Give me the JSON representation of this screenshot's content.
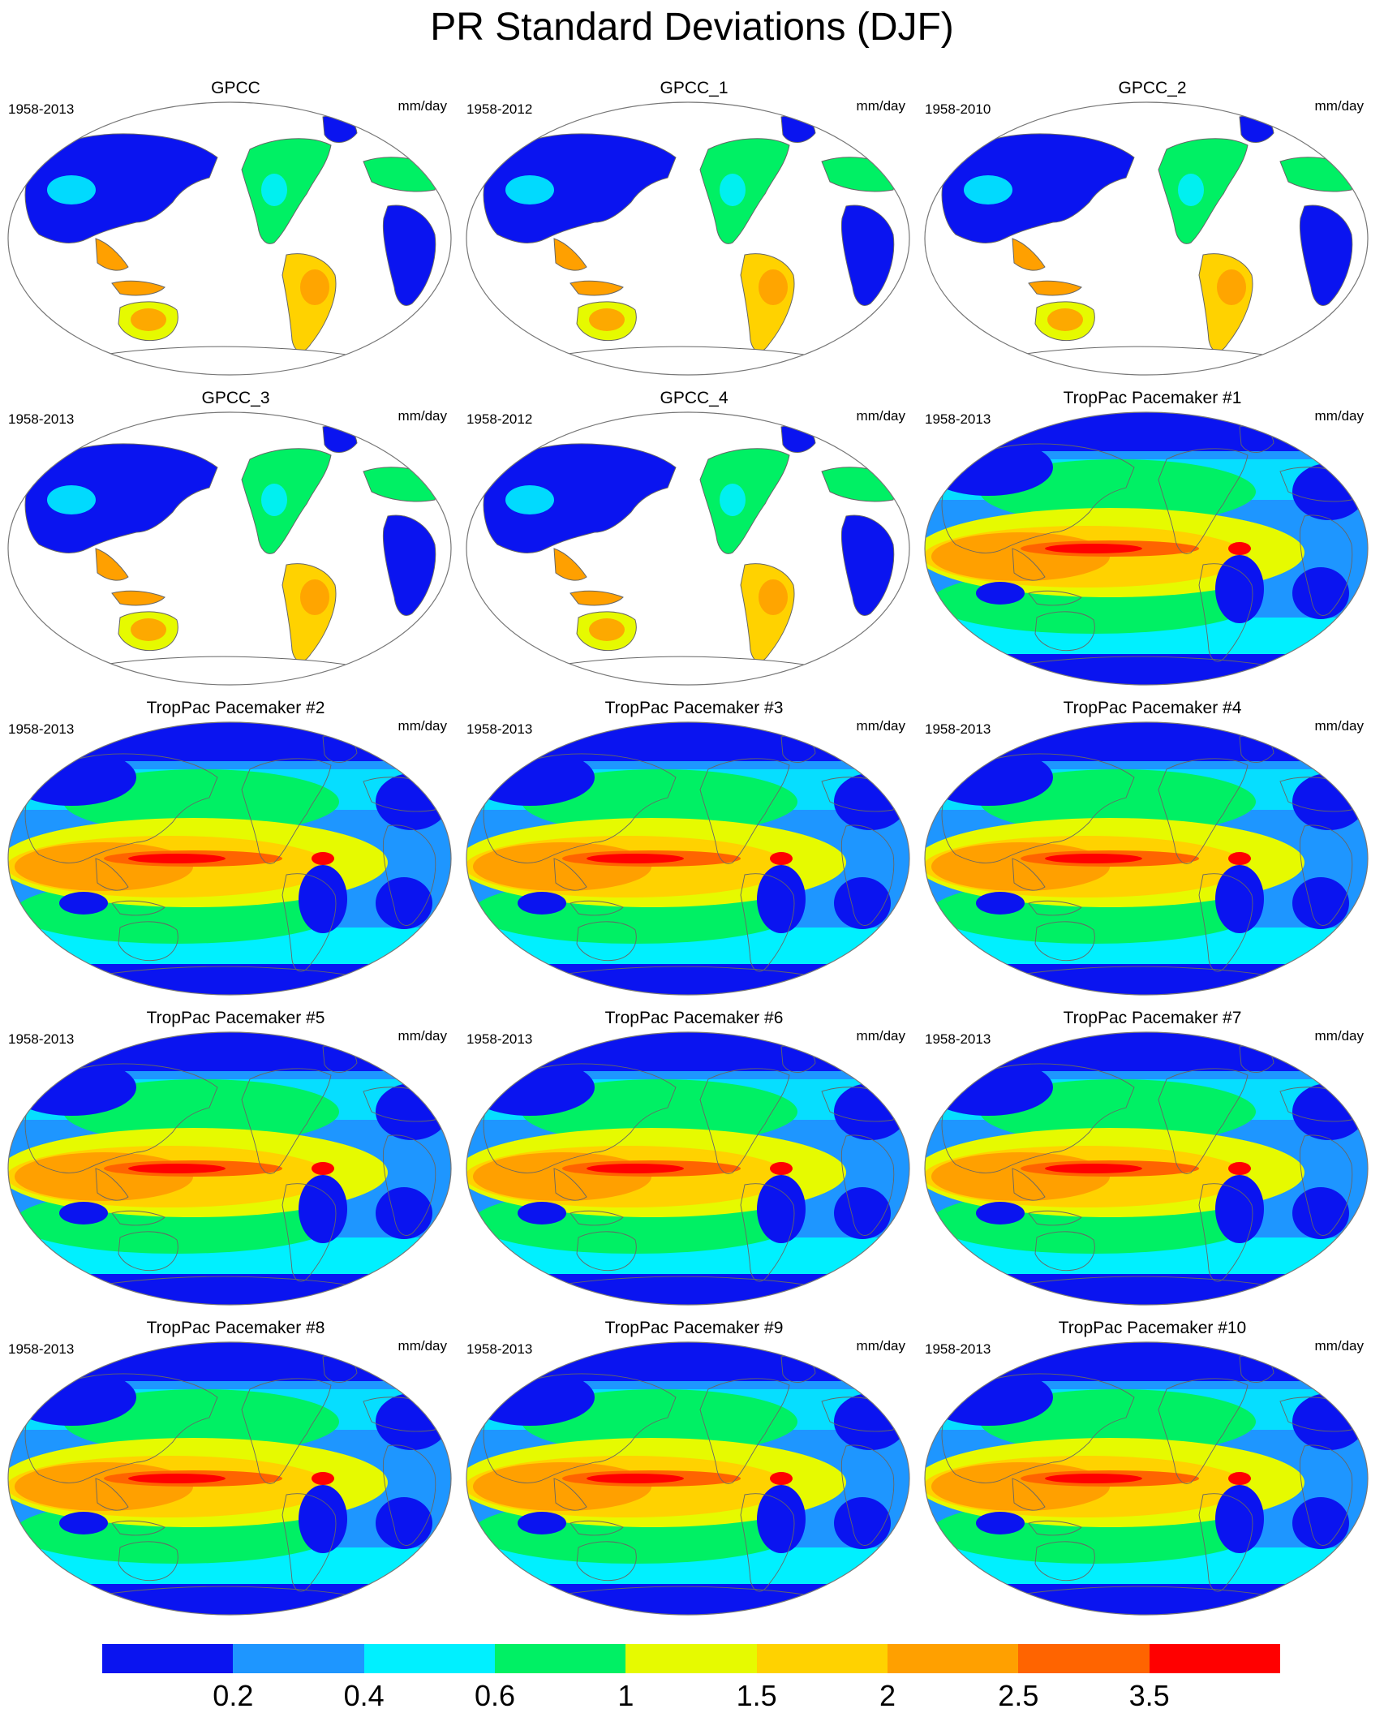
{
  "title": "PR Standard Deviations (DJF)",
  "units": "mm/day",
  "panels": [
    {
      "title": "GPCC",
      "period": "1958-2013",
      "kind": "obs"
    },
    {
      "title": "GPCC_1",
      "period": "1958-2012",
      "kind": "obs"
    },
    {
      "title": "GPCC_2",
      "period": "1958-2010",
      "kind": "obs"
    },
    {
      "title": "GPCC_3",
      "period": "1958-2013",
      "kind": "obs"
    },
    {
      "title": "GPCC_4",
      "period": "1958-2012",
      "kind": "obs"
    },
    {
      "title": "TropPac Pacemaker #1",
      "period": "1958-2013",
      "kind": "model"
    },
    {
      "title": "TropPac Pacemaker #2",
      "period": "1958-2013",
      "kind": "model"
    },
    {
      "title": "TropPac Pacemaker #3",
      "period": "1958-2013",
      "kind": "model"
    },
    {
      "title": "TropPac Pacemaker #4",
      "period": "1958-2013",
      "kind": "model"
    },
    {
      "title": "TropPac Pacemaker #5",
      "period": "1958-2013",
      "kind": "model"
    },
    {
      "title": "TropPac Pacemaker #6",
      "period": "1958-2013",
      "kind": "model"
    },
    {
      "title": "TropPac Pacemaker #7",
      "period": "1958-2013",
      "kind": "model"
    },
    {
      "title": "TropPac Pacemaker #8",
      "period": "1958-2013",
      "kind": "model"
    },
    {
      "title": "TropPac Pacemaker #9",
      "period": "1958-2013",
      "kind": "model"
    },
    {
      "title": "TropPac Pacemaker #10",
      "period": "1958-2013",
      "kind": "model"
    }
  ],
  "colorbar": {
    "labels": [
      "0.2",
      "0.4",
      "0.6",
      "1",
      "1.5",
      "2",
      "2.5",
      "3.5"
    ],
    "colors": [
      "#0a14f0",
      "#1e96ff",
      "#00f0ff",
      "#00f064",
      "#e6fa00",
      "#ffd200",
      "#ffa000",
      "#ff6400",
      "#ff0000"
    ]
  },
  "map_colors": {
    "ocean_missing": "#ffffff",
    "coast": "#666666",
    "low": "#0a14f0",
    "mid_low": "#1e96ff",
    "light": "#00f0ff",
    "green": "#00f064",
    "yellow": "#e6fa00",
    "gold": "#ffd200",
    "orange": "#ffa000",
    "red_orange": "#ff6400",
    "red": "#ff0000"
  }
}
